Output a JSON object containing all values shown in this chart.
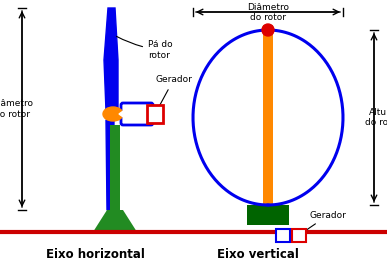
{
  "bg_color": "#ffffff",
  "ground_color": "#cc0000",
  "title_left": "Eixo horizontal",
  "title_right": "Eixo vertical",
  "label_pa": "Pá do\nrotor",
  "label_gerador_left": "Gerador",
  "label_gerador_right": "Gerador",
  "label_diam_left": "Diâmetro\ndo rotor",
  "label_diam_right": "Diâmetro\ndo rotor",
  "label_altura": "Altura\ndo rotor",
  "green": "#228B22",
  "blue": "#0000ee",
  "orange": "#ff8800",
  "red": "#dd0000",
  "dark_green": "#006400"
}
